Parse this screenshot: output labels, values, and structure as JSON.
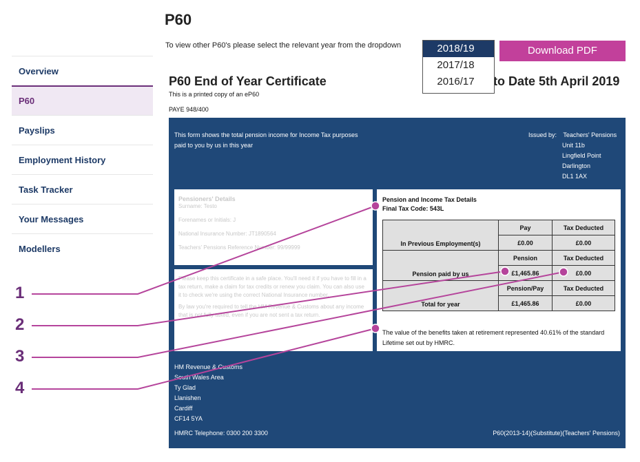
{
  "page_title": "P60",
  "instruction": "To view other P60's please select the relevant year from the dropdown",
  "year_dropdown": {
    "options": [
      "2018/19",
      "2017/18",
      "2016/17"
    ],
    "selected": "2018/19"
  },
  "download_label": "Download PDF",
  "sidebar": {
    "items": [
      {
        "label": "Overview",
        "active": false
      },
      {
        "label": "P60",
        "active": true
      },
      {
        "label": "Payslips",
        "active": false
      },
      {
        "label": "Employment History",
        "active": false
      },
      {
        "label": "Task Tracker",
        "active": false
      },
      {
        "label": "Your Messages",
        "active": false
      },
      {
        "label": "Modellers",
        "active": false
      }
    ]
  },
  "certificate": {
    "title": "P60 End of Year Certificate",
    "title_right": "to Date 5th April 2019",
    "subtitle": "This is a printed copy of an eP60",
    "paye": "PAYE 948/400",
    "intro": "This form shows the total pension income for Income Tax purposes paid to you by us in this year",
    "issued_by": {
      "label": "Issued by:",
      "lines": [
        "Teachers' Pensions",
        "Unit 11b",
        "Lingfield Point",
        "Darlington",
        "DL1 1AX"
      ]
    },
    "pensioner": {
      "heading": "Pensioners' Details",
      "surname": "Surname: Testo",
      "forenames": "Forenames or Initials: J",
      "ni": "National Insurance Number: JT1890564",
      "ref": "Teachers' Pensions Reference Number: 99/99999"
    },
    "note": {
      "p1": "Please keep this certificate in a safe place. You'll need it if you have to fill in a tax return, make a claim for tax credits or renew you claim. You can also use it to check we're using the correct National Insurance number.",
      "p2": "By law you're required to tell the HM Revenue & Customs about any income that is not fully taxed, even if you are not sent a tax return."
    },
    "tax": {
      "heading": "Pension and Income Tax Details",
      "tax_code": "Final Tax Code: 543L",
      "rows": [
        {
          "label": "In Previous Employment(s)",
          "col1_header": "Pay",
          "col2_header": "Tax Deducted",
          "col1": "£0.00",
          "col2": "£0.00"
        },
        {
          "label": "Pension paid by us",
          "col1_header": "Pension",
          "col2_header": "Tax Deducted",
          "col1": "£1,465.86",
          "col2": "£0.00"
        },
        {
          "label": "Total for year",
          "col1_header": "Pension/Pay",
          "col2_header": "Tax Deducted",
          "col1": "£1,465.86",
          "col2": "£0.00"
        }
      ],
      "benefits": "The value of the benefits taken at retirement represented  40.61% of the standard Lifetime set out by HMRC."
    },
    "hmrc_address": [
      "HM Revenue & Customs",
      "South Wales Area",
      "Ty Glad",
      "Llanishen",
      "Cardiff",
      "CF14 5YA"
    ],
    "telephone": "HMRC Telephone: 0300 200 3300",
    "form_ref": "P60(2013-14)(Substitute)(Teachers' Pensions)"
  },
  "callouts": [
    "1",
    "2",
    "3",
    "4"
  ],
  "colors": {
    "navy": "#1f4878",
    "purple": "#6a2e78",
    "magenta": "#c2409b",
    "callout_line": "#b5449b"
  }
}
